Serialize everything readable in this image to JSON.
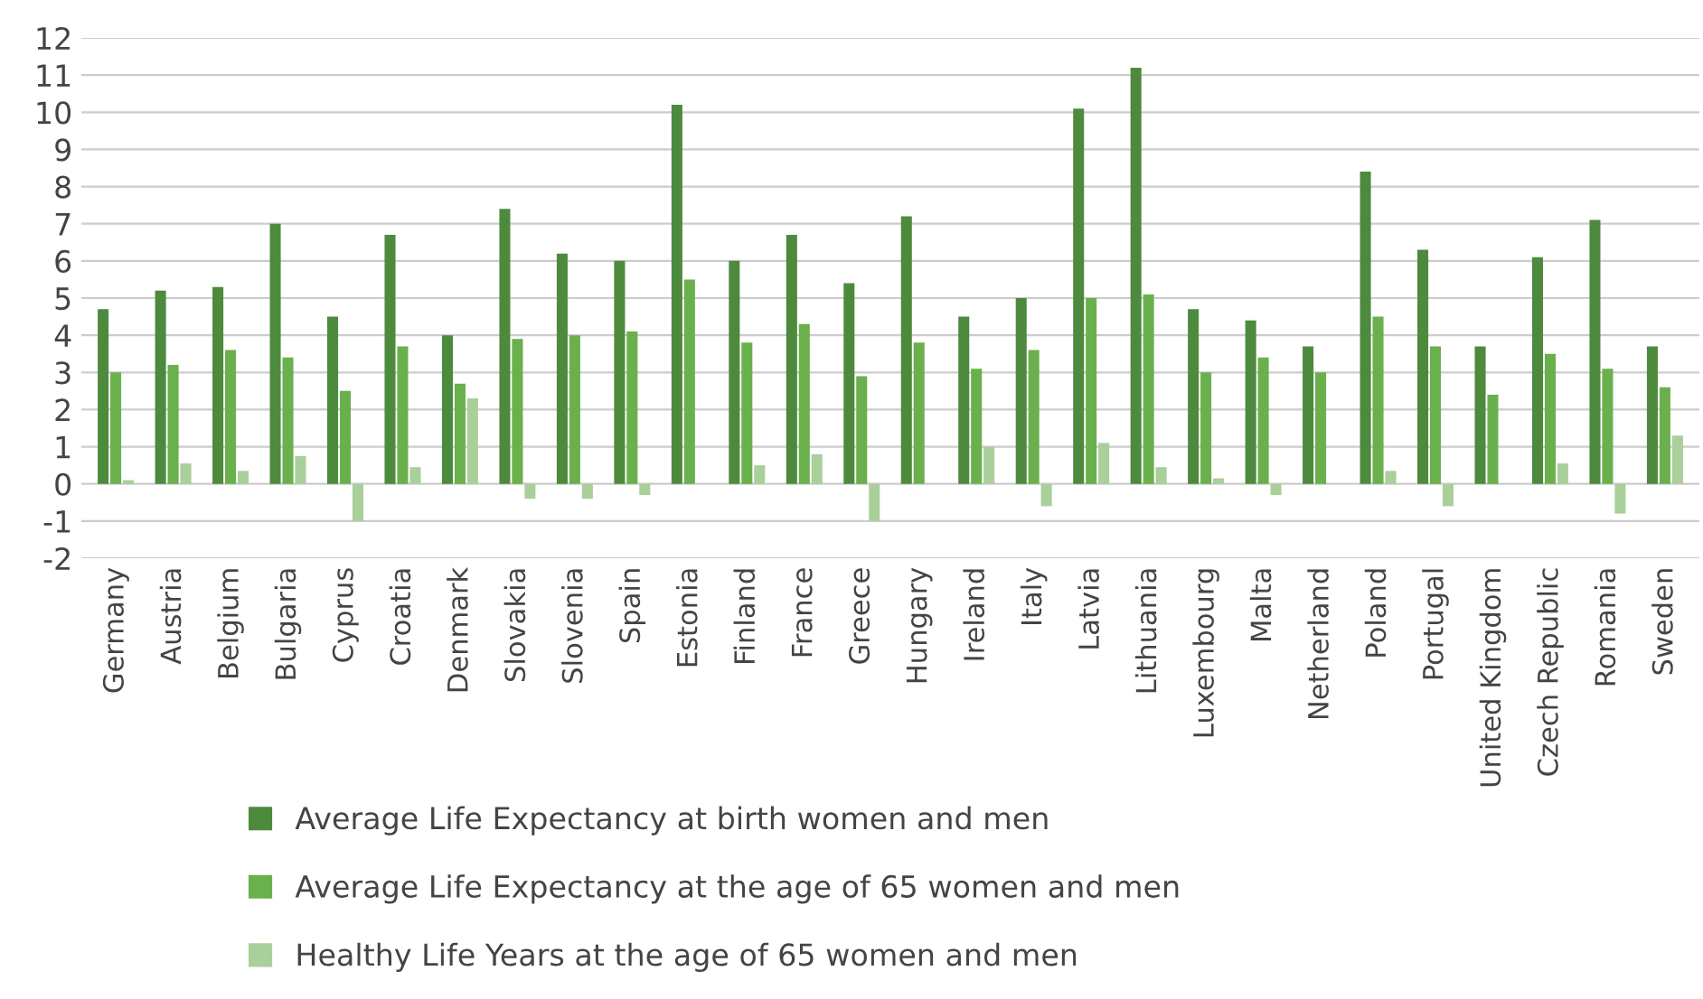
{
  "chart_data": {
    "type": "bar",
    "categories": [
      "Germany",
      "Austria",
      "Belgium",
      "Bulgaria",
      "Cyprus",
      "Croatia",
      "Denmark",
      "Slovakia",
      "Slovenia",
      "Spain",
      "Estonia",
      "Finland",
      "France",
      "Greece",
      "Hungary",
      "Ireland",
      "Italy",
      "Latvia",
      "Lithuania",
      "Luxembourg",
      "Malta",
      "Netherland",
      "Poland",
      "Portugal",
      "United Kingdom",
      "Czech Republic",
      "Romania",
      "Sweden"
    ],
    "series": [
      {
        "name": "Average Life Expectancy at birth women and men",
        "color": "#4e8a3e",
        "values": [
          4.7,
          5.2,
          5.3,
          7.0,
          4.5,
          6.7,
          4.0,
          7.4,
          6.2,
          6.0,
          10.2,
          6.0,
          6.7,
          5.4,
          7.2,
          4.5,
          5.0,
          10.1,
          11.2,
          4.7,
          4.4,
          3.7,
          8.4,
          6.3,
          3.7,
          6.1,
          7.1,
          3.7
        ]
      },
      {
        "name": "Average Life Expectancy at the age of 65 women and men",
        "color": "#6ab04c",
        "values": [
          3.0,
          3.2,
          3.6,
          3.4,
          2.5,
          3.7,
          2.7,
          3.9,
          4.0,
          4.1,
          5.5,
          3.8,
          4.3,
          2.9,
          3.8,
          3.1,
          3.6,
          5.0,
          5.1,
          3.0,
          3.4,
          3.0,
          4.5,
          3.7,
          2.4,
          3.5,
          3.1,
          2.6
        ]
      },
      {
        "name": "Healthy Life Years at the age of 65 women and men",
        "color": "#a9cf9a",
        "values": [
          0.1,
          0.55,
          0.35,
          0.75,
          -1.0,
          0.45,
          2.3,
          -0.4,
          -0.4,
          -0.3,
          null,
          0.5,
          0.8,
          -1.0,
          null,
          1.0,
          -0.6,
          1.1,
          0.45,
          0.15,
          -0.3,
          null,
          0.35,
          -0.6,
          null,
          0.55,
          -0.8,
          1.3
        ]
      }
    ],
    "ylim": [
      -2,
      12
    ],
    "yticks": [
      -2,
      -1,
      0,
      1,
      2,
      3,
      4,
      5,
      6,
      7,
      8,
      9,
      10,
      11,
      12
    ],
    "grid": "y",
    "legend": "bottom"
  }
}
